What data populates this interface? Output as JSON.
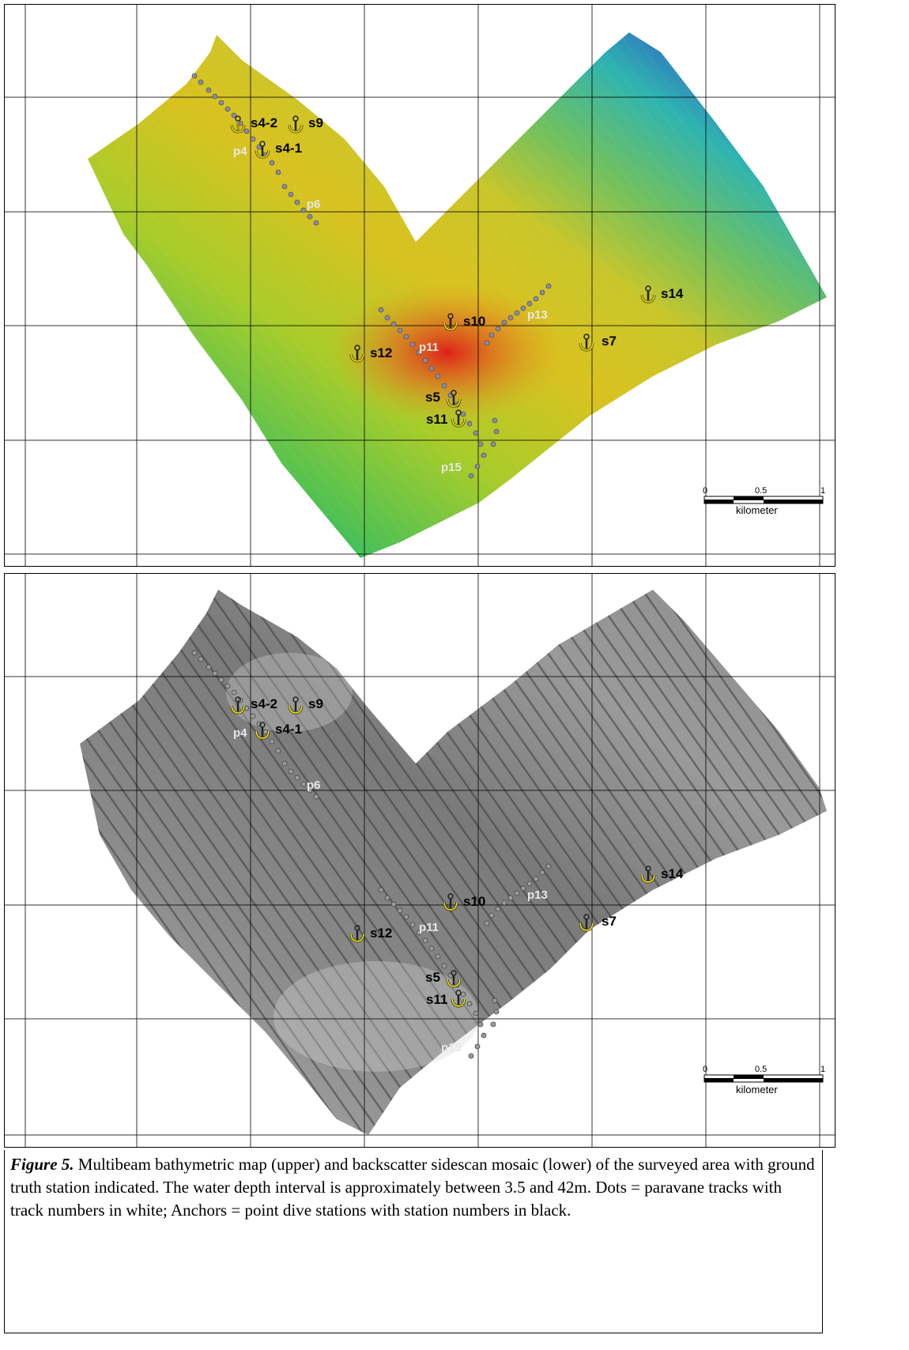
{
  "figure": {
    "label": "Figure 5.",
    "caption": "Multibeam bathymetric map (upper) and backscatter sidescan mosaic (lower) of the surveyed area with ground truth station indicated. The water depth interval is approximately between 3.5 and 42m. Dots = paravane tracks with track numbers in white; Anchors = point dive stations with station numbers in black."
  },
  "scale_bar": {
    "ticks": [
      "0",
      "0.5",
      "1"
    ],
    "unit": "kilometer"
  },
  "stations": [
    {
      "id": "s4-2"
    },
    {
      "id": "s9"
    },
    {
      "id": "s4-1"
    },
    {
      "id": "s14"
    },
    {
      "id": "s10"
    },
    {
      "id": "s7"
    },
    {
      "id": "s12"
    },
    {
      "id": "s5"
    },
    {
      "id": "s11"
    }
  ],
  "tracks": [
    {
      "id": "p4"
    },
    {
      "id": "p6"
    },
    {
      "id": "p13"
    },
    {
      "id": "p11"
    },
    {
      "id": "p15"
    }
  ],
  "panels": [
    {
      "name": "Multibeam bathymetric map",
      "colors": {
        "shallow": "#d8d41a",
        "mid": "#5fc040",
        "deep": "#5a1fb0",
        "peak": "#e02020"
      }
    },
    {
      "name": "Backscatter sidescan mosaic",
      "colors": {
        "light": "#c8c8c8",
        "dark": "#5a5a5a"
      }
    }
  ],
  "colors": {
    "anchor": "#f2e600",
    "anchor_outline": "#222222",
    "track_dot": "#8a8aa8",
    "grid": "#000000"
  }
}
